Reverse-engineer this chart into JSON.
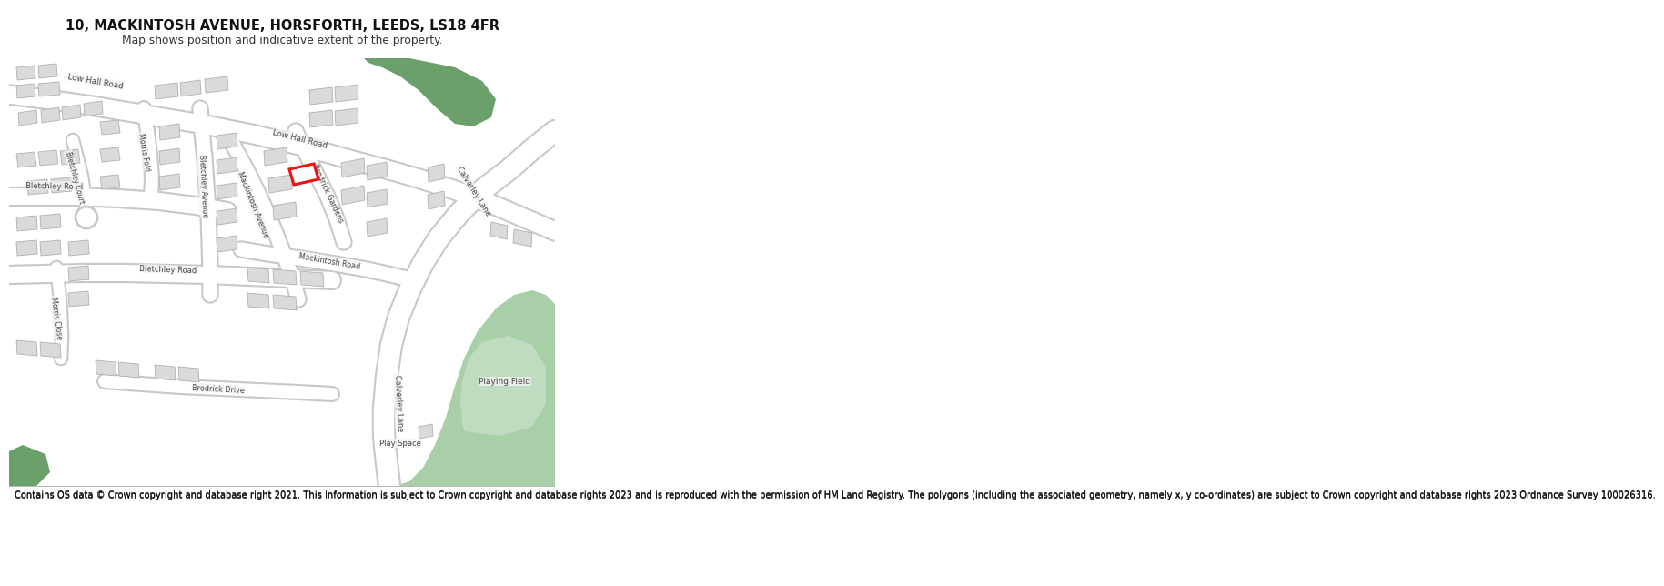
{
  "title_line1": "10, MACKINTOSH AVENUE, HORSFORTH, LEEDS, LS18 4FR",
  "title_line2": "Map shows position and indicative extent of the property.",
  "footer_text": "Contains OS data © Crown copyright and database right 2021. This information is subject to Crown copyright and database rights 2023 and is reproduced with the permission of HM Land Registry. The polygons (including the associated geometry, namely x, y co-ordinates) are subject to Crown copyright and database rights 2023 Ordnance Survey 100026316.",
  "map_bg": "#f5f5f5",
  "road_color": "#ffffff",
  "road_outline_color": "#c8c8c8",
  "building_color": "#dadada",
  "building_outline": "#b0b0b0",
  "green_dark": "#6ba06b",
  "green_light": "#a8cfa8",
  "highlight_color": "#ee1111",
  "label_color": "#444444"
}
